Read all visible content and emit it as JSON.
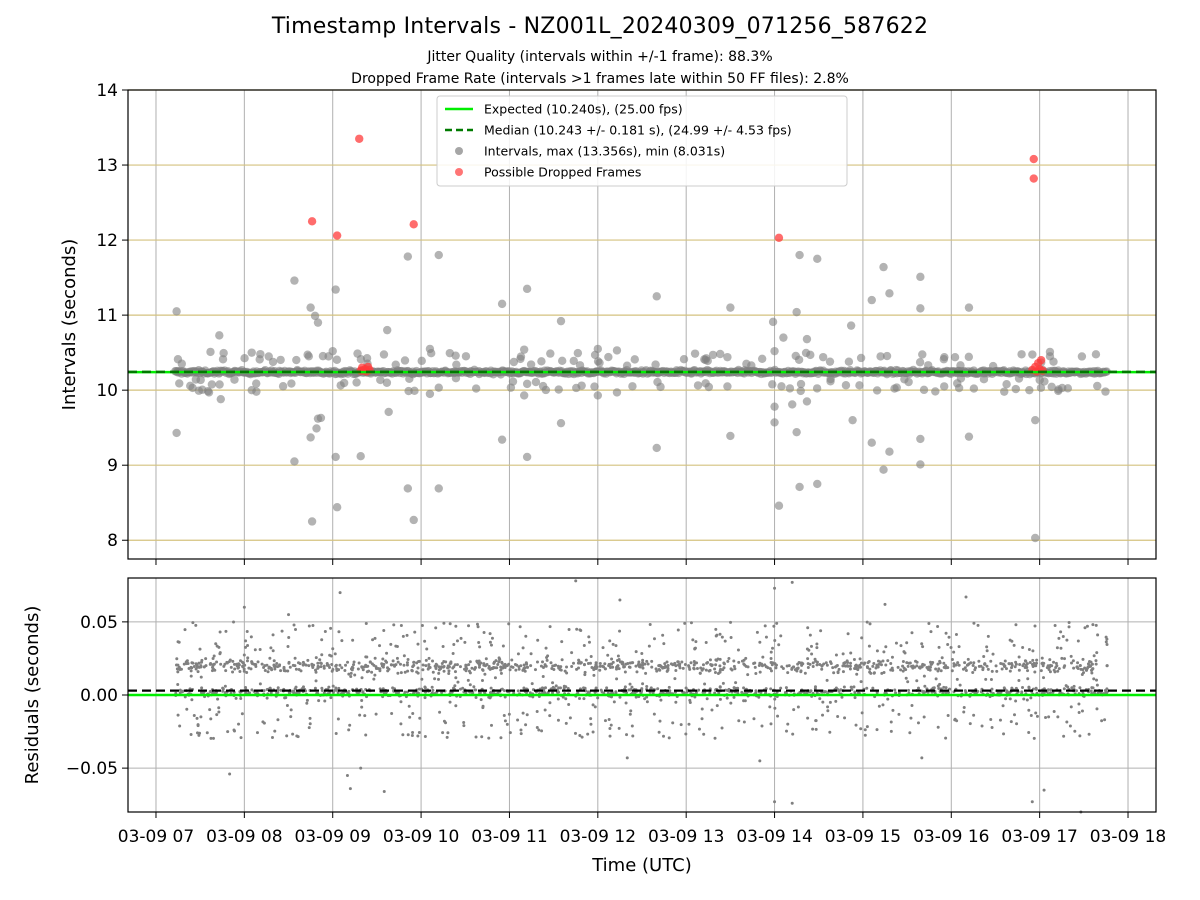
{
  "page": {
    "title": "Timestamp Intervals - NZ001L_20240309_071256_587622",
    "subtitle_1": "Jitter Quality (intervals within +/-1 frame): 88.3%",
    "subtitle_2": "Dropped Frame Rate (intervals >1 frames late within 50 FF files): 2.8%"
  },
  "colors": {
    "expected_line": "#00ee00",
    "median_line": "#007a00",
    "intervals": "#808080",
    "dropped": "#ff3b3b",
    "top_grid_y": "#d4c27f",
    "grid": "#b0b0b0"
  },
  "chart_data": [
    {
      "type": "scatter",
      "panel": "top",
      "title": "Timestamp Intervals - NZ001L_20240309_071256_587622",
      "xlabel": "",
      "ylabel": "Intervals (seconds)",
      "xlim": [
        "03-09 06:41",
        "03-09 18:19"
      ],
      "ylim": [
        7.75,
        14.0
      ],
      "y_ticks": [
        "8",
        "9",
        "10",
        "11",
        "12",
        "13",
        "14"
      ],
      "x_ticks": [
        "03-09 07",
        "03-09 08",
        "03-09 09",
        "03-09 10",
        "03-09 11",
        "03-09 12",
        "03-09 13",
        "03-09 14",
        "03-09 15",
        "03-09 16",
        "03-09 17",
        "03-09 18"
      ],
      "grid": true,
      "legend_position": "top-center",
      "series": [
        {
          "name": "Expected (10.240s), (25.00 fps)",
          "kind": "hline",
          "y": 10.24,
          "style": "solid"
        },
        {
          "name": "Median (10.243 +/- 0.181 s), (24.99 +/- 4.53 fps)",
          "kind": "hline",
          "y": 10.243,
          "style": "dashed"
        },
        {
          "name": "Intervals, max (13.356s), min (8.031s)",
          "kind": "scatter",
          "band": {
            "x_start": "03-09 07:13",
            "x_end": "03-09 17:46",
            "y_center": 10.24,
            "y_spread": 0.04
          },
          "points": [
            {
              "x": "03-09 07:14",
              "y": 11.05
            },
            {
              "x": "03-09 07:14",
              "y": 9.43
            },
            {
              "x": "03-09 07:37",
              "y": 10.51
            },
            {
              "x": "03-09 07:43",
              "y": 10.73
            },
            {
              "x": "03-09 07:36",
              "y": 9.97
            },
            {
              "x": "03-09 07:44",
              "y": 9.88
            },
            {
              "x": "03-09 08:05",
              "y": 10.5
            },
            {
              "x": "03-09 08:05",
              "y": 10.0
            },
            {
              "x": "03-09 08:34",
              "y": 11.46
            },
            {
              "x": "03-09 08:34",
              "y": 9.05
            },
            {
              "x": "03-09 08:45",
              "y": 11.1
            },
            {
              "x": "03-09 08:48",
              "y": 10.99
            },
            {
              "x": "03-09 08:50",
              "y": 10.9
            },
            {
              "x": "03-09 08:45",
              "y": 9.37
            },
            {
              "x": "03-09 08:49",
              "y": 9.49
            },
            {
              "x": "03-09 08:50",
              "y": 9.62
            },
            {
              "x": "03-09 08:52",
              "y": 9.63
            },
            {
              "x": "03-09 08:46",
              "y": 8.25
            },
            {
              "x": "03-09 09:02",
              "y": 11.34
            },
            {
              "x": "03-09 09:00",
              "y": 10.52
            },
            {
              "x": "03-09 09:02",
              "y": 9.11
            },
            {
              "x": "03-09 09:03",
              "y": 8.44
            },
            {
              "x": "03-09 09:19",
              "y": 9.12
            },
            {
              "x": "03-09 09:37",
              "y": 10.8
            },
            {
              "x": "03-09 09:38",
              "y": 9.71
            },
            {
              "x": "03-09 09:51",
              "y": 11.78
            },
            {
              "x": "03-09 09:51",
              "y": 8.69
            },
            {
              "x": "03-09 09:55",
              "y": 8.27
            },
            {
              "x": "03-09 10:06",
              "y": 10.55
            },
            {
              "x": "03-09 10:06",
              "y": 9.95
            },
            {
              "x": "03-09 10:12",
              "y": 11.8
            },
            {
              "x": "03-09 10:12",
              "y": 8.69
            },
            {
              "x": "03-09 10:55",
              "y": 11.15
            },
            {
              "x": "03-09 10:55",
              "y": 9.34
            },
            {
              "x": "03-09 11:12",
              "y": 11.35
            },
            {
              "x": "03-09 11:10",
              "y": 10.54
            },
            {
              "x": "03-09 11:10",
              "y": 9.93
            },
            {
              "x": "03-09 11:12",
              "y": 9.11
            },
            {
              "x": "03-09 11:35",
              "y": 10.92
            },
            {
              "x": "03-09 11:35",
              "y": 9.56
            },
            {
              "x": "03-09 12:00",
              "y": 10.55
            },
            {
              "x": "03-09 12:00",
              "y": 9.93
            },
            {
              "x": "03-09 12:13",
              "y": 10.53
            },
            {
              "x": "03-09 12:13",
              "y": 9.97
            },
            {
              "x": "03-09 12:40",
              "y": 11.25
            },
            {
              "x": "03-09 12:40",
              "y": 9.23
            },
            {
              "x": "03-09 13:30",
              "y": 11.1
            },
            {
              "x": "03-09 13:28",
              "y": 10.44
            },
            {
              "x": "03-09 13:30",
              "y": 9.39
            },
            {
              "x": "03-09 13:28",
              "y": 10.05
            },
            {
              "x": "03-09 13:59",
              "y": 10.91
            },
            {
              "x": "03-09 14:00",
              "y": 10.52
            },
            {
              "x": "03-09 14:00",
              "y": 9.78
            },
            {
              "x": "03-09 14:00",
              "y": 9.57
            },
            {
              "x": "03-09 14:03",
              "y": 8.46
            },
            {
              "x": "03-09 14:06",
              "y": 10.7
            },
            {
              "x": "03-09 14:12",
              "y": 9.81
            },
            {
              "x": "03-09 14:15",
              "y": 11.04
            },
            {
              "x": "03-09 14:15",
              "y": 9.44
            },
            {
              "x": "03-09 14:17",
              "y": 11.8
            },
            {
              "x": "03-09 14:17",
              "y": 8.71
            },
            {
              "x": "03-09 14:22",
              "y": 10.68
            },
            {
              "x": "03-09 14:22",
              "y": 9.85
            },
            {
              "x": "03-09 14:29",
              "y": 11.75
            },
            {
              "x": "03-09 14:29",
              "y": 8.75
            },
            {
              "x": "03-09 14:33",
              "y": 10.44
            },
            {
              "x": "03-09 14:52",
              "y": 10.86
            },
            {
              "x": "03-09 14:53",
              "y": 9.6
            },
            {
              "x": "03-09 15:06",
              "y": 11.2
            },
            {
              "x": "03-09 15:06",
              "y": 9.3
            },
            {
              "x": "03-09 15:14",
              "y": 11.64
            },
            {
              "x": "03-09 15:14",
              "y": 8.94
            },
            {
              "x": "03-09 15:18",
              "y": 11.29
            },
            {
              "x": "03-09 15:18",
              "y": 9.18
            },
            {
              "x": "03-09 15:12",
              "y": 10.45
            },
            {
              "x": "03-09 15:39",
              "y": 11.51
            },
            {
              "x": "03-09 15:39",
              "y": 11.09
            },
            {
              "x": "03-09 15:39",
              "y": 9.35
            },
            {
              "x": "03-09 15:39",
              "y": 9.01
            },
            {
              "x": "03-09 16:12",
              "y": 11.1
            },
            {
              "x": "03-09 16:12",
              "y": 9.38
            },
            {
              "x": "03-09 16:57",
              "y": 9.6
            },
            {
              "x": "03-09 16:57",
              "y": 8.03
            },
            {
              "x": "03-09 16:53",
              "y": 10.0
            },
            {
              "x": "03-09 17:07",
              "y": 10.51
            }
          ]
        },
        {
          "name": "Possible Dropped Frames",
          "kind": "scatter",
          "points": [
            {
              "x": "03-09 08:46",
              "y": 12.25
            },
            {
              "x": "03-09 09:03",
              "y": 12.06
            },
            {
              "x": "03-09 09:18",
              "y": 13.35
            },
            {
              "x": "03-09 09:55",
              "y": 12.21
            },
            {
              "x": "03-09 09:19",
              "y": 10.26
            },
            {
              "x": "03-09 09:20",
              "y": 10.3
            },
            {
              "x": "03-09 09:21",
              "y": 10.26
            },
            {
              "x": "03-09 09:22",
              "y": 10.28
            },
            {
              "x": "03-09 09:23",
              "y": 10.25
            },
            {
              "x": "03-09 09:24",
              "y": 10.31
            },
            {
              "x": "03-09 09:25",
              "y": 10.27
            },
            {
              "x": "03-09 14:03",
              "y": 12.03
            },
            {
              "x": "03-09 16:56",
              "y": 13.08
            },
            {
              "x": "03-09 16:56",
              "y": 12.82
            },
            {
              "x": "03-09 16:55",
              "y": 10.27
            },
            {
              "x": "03-09 16:57",
              "y": 10.31
            },
            {
              "x": "03-09 16:58",
              "y": 10.25
            },
            {
              "x": "03-09 16:59",
              "y": 10.36
            },
            {
              "x": "03-09 17:00",
              "y": 10.28
            },
            {
              "x": "03-09 17:01",
              "y": 10.4
            },
            {
              "x": "03-09 17:02",
              "y": 10.26
            }
          ]
        }
      ]
    },
    {
      "type": "scatter",
      "panel": "bottom",
      "xlabel": "Time (UTC)",
      "ylabel": "Residuals (seconds)",
      "xlim": [
        "03-09 06:41",
        "03-09 18:19"
      ],
      "ylim": [
        -0.08,
        0.08
      ],
      "y_ticks": [
        "−0.05",
        "0.00",
        "0.05"
      ],
      "x_ticks": [
        "03-09 07",
        "03-09 08",
        "03-09 09",
        "03-09 10",
        "03-09 11",
        "03-09 12",
        "03-09 13",
        "03-09 14",
        "03-09 15",
        "03-09 16",
        "03-09 17",
        "03-09 18"
      ],
      "grid": true,
      "series": [
        {
          "kind": "hline",
          "y": 0.0,
          "style": "solid"
        },
        {
          "kind": "hline",
          "y": 0.003,
          "style": "dashed"
        },
        {
          "kind": "scatter",
          "band": {
            "x_start": "03-09 07:13",
            "x_end": "03-09 17:46",
            "y_min": -0.03,
            "y_max": 0.05,
            "point_count": 2200
          },
          "outliers": [
            {
              "x": "03-09 08:00",
              "y": 0.06
            },
            {
              "x": "03-09 08:30",
              "y": 0.055
            },
            {
              "x": "03-09 09:05",
              "y": 0.07
            },
            {
              "x": "03-09 09:10",
              "y": -0.055
            },
            {
              "x": "03-09 09:12",
              "y": -0.064
            },
            {
              "x": "03-09 09:19",
              "y": -0.05
            },
            {
              "x": "03-09 09:35",
              "y": -0.066
            },
            {
              "x": "03-09 07:50",
              "y": -0.054
            },
            {
              "x": "03-09 11:45",
              "y": 0.078
            },
            {
              "x": "03-09 12:15",
              "y": 0.065
            },
            {
              "x": "03-09 12:20",
              "y": -0.043
            },
            {
              "x": "03-09 13:50",
              "y": -0.045
            },
            {
              "x": "03-09 14:00",
              "y": 0.073
            },
            {
              "x": "03-09 14:12",
              "y": 0.077
            },
            {
              "x": "03-09 14:00",
              "y": -0.073
            },
            {
              "x": "03-09 14:12",
              "y": -0.074
            },
            {
              "x": "03-09 15:15",
              "y": 0.062
            },
            {
              "x": "03-09 15:40",
              "y": -0.043
            },
            {
              "x": "03-09 16:10",
              "y": 0.067
            },
            {
              "x": "03-09 16:55",
              "y": -0.073
            },
            {
              "x": "03-09 17:03",
              "y": -0.065
            },
            {
              "x": "03-09 17:28",
              "y": -0.08
            }
          ]
        }
      ]
    }
  ]
}
